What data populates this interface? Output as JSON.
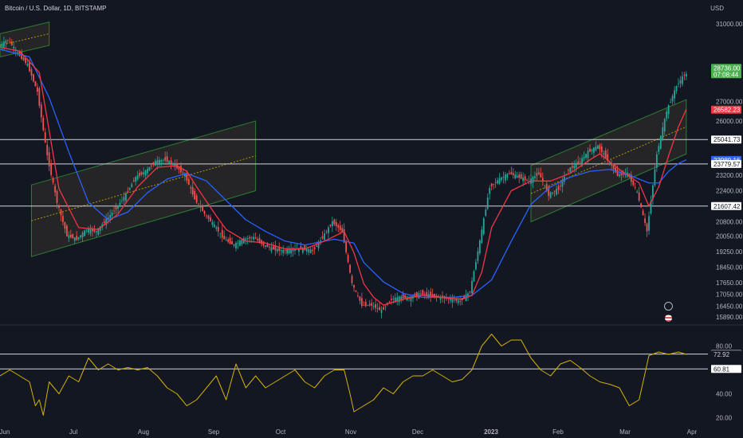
{
  "header": {
    "title": "Bitcoin / U.S. Dollar, 1D, BITSTAMP",
    "currency": "USD"
  },
  "colors": {
    "background": "#131722",
    "up": "#26a69a",
    "down": "#ef5350",
    "ma_fast": "#f23645",
    "ma_slow": "#2962ff",
    "rsi": "#d4b106",
    "channel": "#2e7d32",
    "hline": "#d1d4dc"
  },
  "icons": {
    "alert": "lightning-bolt-icon",
    "event": "us-flag-icon"
  },
  "chart_data": [
    {
      "type": "candlestick",
      "title": "",
      "x_ticks": [
        "Jun",
        "Jul",
        "Aug",
        "Sep",
        "Oct",
        "Nov",
        "Dec",
        "2023",
        "Feb",
        "Mar",
        "Apr"
      ],
      "y_ticks": [
        31000,
        27000,
        26000,
        23200,
        22400,
        20800,
        20050,
        19250,
        18450,
        17650,
        17050,
        16450,
        15890
      ],
      "ylim": [
        15600,
        31500
      ],
      "price_series": [
        [
          0,
          29800
        ],
        [
          5,
          30200
        ],
        [
          10,
          29500
        ],
        [
          15,
          28900
        ],
        [
          20,
          27500
        ],
        [
          25,
          24200
        ],
        [
          30,
          21800
        ],
        [
          35,
          20100
        ],
        [
          40,
          19900
        ],
        [
          45,
          20400
        ],
        [
          50,
          20300
        ],
        [
          55,
          20900
        ],
        [
          60,
          21500
        ],
        [
          65,
          22200
        ],
        [
          70,
          23100
        ],
        [
          75,
          23400
        ],
        [
          80,
          23900
        ],
        [
          85,
          24000
        ],
        [
          90,
          23700
        ],
        [
          95,
          23200
        ],
        [
          100,
          22000
        ],
        [
          105,
          21200
        ],
        [
          110,
          20600
        ],
        [
          115,
          19900
        ],
        [
          120,
          19600
        ],
        [
          125,
          19900
        ],
        [
          130,
          20000
        ],
        [
          135,
          19600
        ],
        [
          140,
          19400
        ],
        [
          145,
          19300
        ],
        [
          150,
          19400
        ],
        [
          155,
          19400
        ],
        [
          160,
          19300
        ],
        [
          165,
          20000
        ],
        [
          170,
          20800
        ],
        [
          175,
          20300
        ],
        [
          180,
          17600
        ],
        [
          185,
          16500
        ],
        [
          190,
          16500
        ],
        [
          195,
          16200
        ],
        [
          200,
          16800
        ],
        [
          205,
          16900
        ],
        [
          210,
          16900
        ],
        [
          215,
          17100
        ],
        [
          220,
          17000
        ],
        [
          225,
          16900
        ],
        [
          230,
          16800
        ],
        [
          235,
          16700
        ],
        [
          240,
          17200
        ],
        [
          245,
          19800
        ],
        [
          250,
          22600
        ],
        [
          255,
          23000
        ],
        [
          260,
          23300
        ],
        [
          265,
          23100
        ],
        [
          270,
          22900
        ],
        [
          275,
          23300
        ],
        [
          280,
          22200
        ],
        [
          285,
          22500
        ],
        [
          290,
          23500
        ],
        [
          295,
          23800
        ],
        [
          300,
          24400
        ],
        [
          305,
          24700
        ],
        [
          310,
          24000
        ],
        [
          315,
          23200
        ],
        [
          320,
          23300
        ],
        [
          325,
          22300
        ],
        [
          330,
          20300
        ],
        [
          335,
          24300
        ],
        [
          340,
          26500
        ],
        [
          345,
          27800
        ],
        [
          349,
          28400
        ]
      ],
      "ma_fast_series": [
        [
          0,
          29800
        ],
        [
          10,
          29600
        ],
        [
          20,
          28500
        ],
        [
          25,
          25500
        ],
        [
          30,
          22500
        ],
        [
          40,
          20500
        ],
        [
          50,
          20400
        ],
        [
          60,
          21200
        ],
        [
          70,
          22600
        ],
        [
          80,
          23600
        ],
        [
          90,
          23700
        ],
        [
          95,
          23400
        ],
        [
          100,
          22600
        ],
        [
          110,
          21100
        ],
        [
          115,
          20400
        ],
        [
          125,
          19800
        ],
        [
          135,
          19700
        ],
        [
          145,
          19400
        ],
        [
          155,
          19400
        ],
        [
          165,
          19800
        ],
        [
          175,
          20300
        ],
        [
          180,
          19200
        ],
        [
          185,
          17600
        ],
        [
          190,
          16900
        ],
        [
          195,
          16500
        ],
        [
          205,
          16800
        ],
        [
          215,
          17000
        ],
        [
          225,
          16900
        ],
        [
          235,
          16800
        ],
        [
          240,
          17000
        ],
        [
          245,
          18200
        ],
        [
          250,
          20500
        ],
        [
          260,
          22400
        ],
        [
          270,
          22900
        ],
        [
          280,
          22900
        ],
        [
          290,
          23300
        ],
        [
          300,
          24000
        ],
        [
          305,
          24300
        ],
        [
          315,
          23500
        ],
        [
          325,
          22800
        ],
        [
          330,
          21600
        ],
        [
          335,
          22600
        ],
        [
          340,
          24200
        ],
        [
          345,
          25700
        ],
        [
          349,
          26600
        ]
      ],
      "ma_slow_series": [
        [
          0,
          29700
        ],
        [
          15,
          29300
        ],
        [
          25,
          27200
        ],
        [
          35,
          24400
        ],
        [
          45,
          21800
        ],
        [
          55,
          20900
        ],
        [
          65,
          21300
        ],
        [
          75,
          22300
        ],
        [
          85,
          23000
        ],
        [
          95,
          23300
        ],
        [
          105,
          22900
        ],
        [
          115,
          21900
        ],
        [
          125,
          20900
        ],
        [
          135,
          20300
        ],
        [
          145,
          19800
        ],
        [
          155,
          19600
        ],
        [
          170,
          19900
        ],
        [
          180,
          19700
        ],
        [
          185,
          18700
        ],
        [
          195,
          17700
        ],
        [
          205,
          17100
        ],
        [
          215,
          16900
        ],
        [
          230,
          16900
        ],
        [
          240,
          17000
        ],
        [
          250,
          17800
        ],
        [
          260,
          19800
        ],
        [
          270,
          21700
        ],
        [
          280,
          22600
        ],
        [
          290,
          23100
        ],
        [
          300,
          23400
        ],
        [
          310,
          23500
        ],
        [
          320,
          23200
        ],
        [
          330,
          22800
        ],
        [
          335,
          22800
        ],
        [
          340,
          23400
        ],
        [
          345,
          23800
        ],
        [
          349,
          24000
        ]
      ],
      "channels": [
        {
          "x1": 0,
          "y1_top": 30500,
          "y1_bot": 29300,
          "x2": 25,
          "y2_top": 31100,
          "y2_bot": 29900
        },
        {
          "x1": 16,
          "y1_top": 22700,
          "y1_bot": 19000,
          "x2": 130,
          "y2_top": 26000,
          "y2_bot": 22400
        },
        {
          "x1": 270,
          "y1_top": 23700,
          "y1_bot": 20800,
          "x2": 349,
          "y2_top": 27100,
          "y2_bot": 24300
        }
      ],
      "horizontal_levels": [
        25041.73,
        23779.57,
        21607.42
      ],
      "price_tags": [
        {
          "label": "28736.00",
          "sublabel": "07:08:44",
          "value": 28736,
          "color": "#4caf50",
          "text_color": "#ffffff"
        },
        {
          "label": "26582.23",
          "value": 26582,
          "color": "#f23645",
          "text_color": "#ffffff"
        },
        {
          "label": "25041.73",
          "value": 25041.73,
          "color": "#ffffff",
          "text_color": "#131722"
        },
        {
          "label": "23989.16",
          "value": 23989,
          "color": "#2962ff",
          "text_color": "#ffffff"
        },
        {
          "label": "23779.57",
          "value": 23779.57,
          "color": "#ffffff",
          "text_color": "#131722"
        },
        {
          "label": "21607.42",
          "value": 21607.42,
          "color": "#ffffff",
          "text_color": "#131722"
        }
      ]
    },
    {
      "type": "line",
      "title": "",
      "y_ticks": [
        80.0,
        60.0,
        40.0,
        20.0
      ],
      "ylim": [
        15,
        95
      ],
      "levels": [
        73.21,
        60.81
      ],
      "rsi_series": [
        [
          0,
          55
        ],
        [
          5,
          60
        ],
        [
          10,
          55
        ],
        [
          15,
          50
        ],
        [
          18,
          30
        ],
        [
          20,
          35
        ],
        [
          22,
          22
        ],
        [
          25,
          50
        ],
        [
          30,
          40
        ],
        [
          35,
          55
        ],
        [
          40,
          50
        ],
        [
          45,
          70
        ],
        [
          50,
          60
        ],
        [
          55,
          65
        ],
        [
          60,
          60
        ],
        [
          65,
          62
        ],
        [
          70,
          60
        ],
        [
          75,
          62
        ],
        [
          80,
          55
        ],
        [
          85,
          45
        ],
        [
          90,
          40
        ],
        [
          95,
          30
        ],
        [
          100,
          35
        ],
        [
          105,
          45
        ],
        [
          110,
          55
        ],
        [
          115,
          35
        ],
        [
          120,
          65
        ],
        [
          125,
          45
        ],
        [
          130,
          55
        ],
        [
          135,
          45
        ],
        [
          140,
          50
        ],
        [
          145,
          55
        ],
        [
          150,
          60
        ],
        [
          155,
          50
        ],
        [
          160,
          45
        ],
        [
          165,
          55
        ],
        [
          170,
          60
        ],
        [
          175,
          60
        ],
        [
          178,
          40
        ],
        [
          180,
          25
        ],
        [
          185,
          30
        ],
        [
          190,
          35
        ],
        [
          195,
          45
        ],
        [
          200,
          40
        ],
        [
          205,
          50
        ],
        [
          210,
          55
        ],
        [
          215,
          55
        ],
        [
          220,
          60
        ],
        [
          225,
          55
        ],
        [
          230,
          50
        ],
        [
          235,
          52
        ],
        [
          240,
          60
        ],
        [
          245,
          80
        ],
        [
          250,
          90
        ],
        [
          255,
          80
        ],
        [
          260,
          85
        ],
        [
          265,
          85
        ],
        [
          270,
          70
        ],
        [
          275,
          60
        ],
        [
          280,
          55
        ],
        [
          285,
          65
        ],
        [
          290,
          68
        ],
        [
          295,
          62
        ],
        [
          300,
          55
        ],
        [
          305,
          50
        ],
        [
          310,
          48
        ],
        [
          315,
          45
        ],
        [
          320,
          30
        ],
        [
          325,
          35
        ],
        [
          330,
          72
        ],
        [
          335,
          75
        ],
        [
          340,
          73
        ],
        [
          345,
          75
        ],
        [
          349,
          73
        ]
      ],
      "tags": [
        {
          "label": "73.21",
          "value": 73.21,
          "color": "#ffffff",
          "text_color": "#131722"
        },
        {
          "label": "72.92",
          "value": 72.92,
          "color": "#131722",
          "text_color": "#d1d4dc"
        },
        {
          "label": "60.81",
          "value": 60.81,
          "color": "#ffffff",
          "text_color": "#131722"
        }
      ]
    }
  ]
}
